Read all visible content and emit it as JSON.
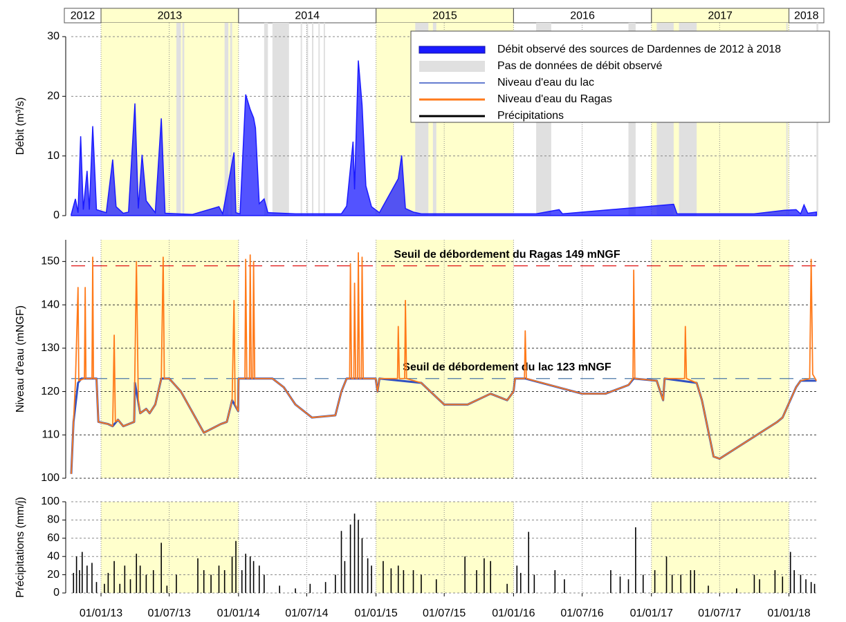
{
  "years": {
    "labels": [
      "2012",
      "2013",
      "2014",
      "2015",
      "2016",
      "2017",
      "2018"
    ],
    "shaded": [
      false,
      true,
      false,
      true,
      false,
      true,
      false
    ],
    "shade_color": "#ffffcc"
  },
  "chart_data": [
    {
      "type": "area",
      "ylabel": "Débit (m³/s)",
      "ylim": [
        0,
        30
      ],
      "yticks": [
        0,
        10,
        20,
        30
      ],
      "grid": true,
      "legend": "upper right",
      "xlim": [
        "14/10/12",
        "20/03/18"
      ],
      "series": [
        {
          "name": "Débit observé des sources de Dardennes de 2012 à 2018",
          "color": "#1a1aff",
          "x": [
            "14/10/12",
            "25/10/12",
            "01/11/12",
            "08/11/12",
            "15/11/12",
            "25/11/12",
            "01/12/12",
            "10/12/12",
            "20/12/12",
            "15/01/13",
            "01/02/13",
            "10/02/13",
            "01/03/13",
            "15/03/13",
            "01/04/13",
            "10/04/13",
            "20/04/13",
            "01/05/13",
            "15/05/13",
            "25/05/13",
            "10/06/13",
            "20/06/13",
            "01/09/13",
            "10/11/13",
            "20/11/13",
            "20/12/13",
            "25/12/13",
            "05/01/14",
            "20/01/14",
            "01/02/14",
            "10/02/14",
            "15/02/14",
            "25/02/14",
            "10/03/14",
            "20/03/14",
            "01/06/14",
            "01/10/14",
            "15/10/14",
            "01/11/14",
            "05/11/14",
            "15/11/14",
            "25/11/14",
            "05/12/14",
            "20/12/14",
            "10/01/15",
            "01/03/15",
            "10/03/15",
            "20/03/15",
            "10/04/15",
            "01/05/15",
            "01/03/16",
            "01/05/16",
            "10/05/16",
            "01/03/17",
            "10/03/17",
            "01/10/17",
            "20/12/17",
            "20/01/18",
            "01/02/18",
            "10/02/18",
            "20/02/18",
            "15/03/18"
          ],
          "values": [
            0.2,
            2.8,
            0.5,
            13.3,
            1.0,
            7.5,
            1.0,
            15,
            1.0,
            0.5,
            9.4,
            1.5,
            0.4,
            0.6,
            18.8,
            1.2,
            10.2,
            2.5,
            1.3,
            0.5,
            16.3,
            0.4,
            0.2,
            1.5,
            0.3,
            10.6,
            0.5,
            0.3,
            20.3,
            17.8,
            16.4,
            14.7,
            2.0,
            2.8,
            0.5,
            0.3,
            0.3,
            1.6,
            12.4,
            4.4,
            26,
            18.5,
            5,
            1.5,
            0.5,
            6.2,
            10.1,
            1.2,
            0.6,
            0.3,
            0.3,
            1.0,
            0.3,
            1.9,
            0.3,
            0.3,
            0.9,
            1.0,
            0.3,
            1.8,
            0.4,
            0.6
          ]
        }
      ],
      "gap_label": "Pas de données de débit observé",
      "gap_color": "#e0e0e0",
      "gaps": [
        [
          "20/07/13",
          "01/08/13"
        ],
        [
          "05/08/13",
          "10/08/13"
        ],
        [
          "25/11/13",
          "05/12/13"
        ],
        [
          "10/12/13",
          "15/12/13"
        ],
        [
          "10/03/14",
          "20/03/14"
        ],
        [
          "01/04/14",
          "15/05/14"
        ],
        [
          "15/06/14",
          "17/06/14"
        ],
        [
          "01/07/14",
          "03/07/14"
        ],
        [
          "15/07/14",
          "17/07/14"
        ],
        [
          "01/08/14",
          "03/08/14"
        ],
        [
          "15/08/14",
          "17/08/14"
        ],
        [
          "15/04/15",
          "20/05/15"
        ],
        [
          "01/06/15",
          "10/06/15"
        ],
        [
          "01/03/16",
          "10/04/16"
        ],
        [
          "01/11/16",
          "20/11/16"
        ],
        [
          "15/01/17",
          "01/03/17"
        ],
        [
          "15/03/17",
          "01/05/17"
        ],
        [
          "25/12/17",
          "28/12/17"
        ],
        [
          "15/03/18",
          "20/03/18"
        ]
      ]
    },
    {
      "type": "line",
      "ylabel": "Niveau d'eau (mNGF)",
      "ylim": [
        100,
        155
      ],
      "yticks": [
        100,
        110,
        120,
        130,
        140,
        150
      ],
      "grid": true,
      "xlim": [
        "14/10/12",
        "20/03/18"
      ],
      "series": [
        {
          "name": "Niveau d'eau du lac",
          "color": "#3050c0",
          "x": [
            "14/10/12",
            "20/10/12",
            "01/11/12",
            "10/11/12",
            "20/12/12",
            "25/12/12",
            "20/01/13",
            "01/02/13",
            "15/02/13",
            "01/03/13",
            "30/03/13",
            "01/04/13",
            "15/04/13",
            "01/05/13",
            "10/05/13",
            "25/05/13",
            "10/06/13",
            "01/07/13",
            "01/08/13",
            "01/10/13",
            "15/11/13",
            "01/12/13",
            "15/12/13",
            "31/12/13",
            "01/01/14",
            "01/04/14",
            "01/05/14",
            "01/06/14",
            "15/07/14",
            "15/09/14",
            "01/10/14",
            "15/10/14",
            "31/12/14",
            "05/01/15",
            "10/01/15",
            "01/05/15",
            "01/07/15",
            "01/09/15",
            "01/11/15",
            "15/12/15",
            "01/01/16",
            "05/01/16",
            "01/02/16",
            "01/07/16",
            "01/09/16",
            "01/11/16",
            "15/11/16",
            "15/01/17",
            "01/02/17",
            "05/02/17",
            "01/05/17",
            "15/05/17",
            "15/06/17",
            "01/07/17",
            "01/12/17",
            "15/12/17",
            "20/01/18",
            "01/02/18",
            "15/03/18"
          ],
          "values": [
            101,
            113,
            122,
            123,
            123,
            113,
            112.5,
            112,
            113.5,
            112,
            113,
            122,
            115,
            116,
            115,
            117,
            123,
            123,
            120,
            110.5,
            112.5,
            113,
            118,
            115.5,
            123,
            123,
            121,
            117,
            114,
            114.5,
            120,
            123,
            123,
            120,
            123,
            122,
            117,
            117,
            119.5,
            118,
            120,
            123,
            123,
            119.5,
            119.5,
            121.5,
            123,
            122.5,
            118,
            123,
            122,
            118,
            105,
            104.5,
            113,
            114,
            121,
            122.5,
            122.5
          ]
        },
        {
          "name": "Niveau d'eau du Ragas",
          "color": "#ff7a1a",
          "x": [
            "14/10/12",
            "20/10/12",
            "25/10/12",
            "01/11/12",
            "03/11/12",
            "18/11/12",
            "20/11/12",
            "22/11/12",
            "08/12/12",
            "10/12/12",
            "12/12/12",
            "20/12/12",
            "25/12/12",
            "20/01/13",
            "01/02/13",
            "05/02/13",
            "08/02/13",
            "15/02/13",
            "01/03/13",
            "30/03/13",
            "05/04/13",
            "10/04/13",
            "15/04/13",
            "01/05/13",
            "10/05/13",
            "25/05/13",
            "10/06/13",
            "15/06/13",
            "18/06/13",
            "01/07/13",
            "01/08/13",
            "01/10/13",
            "15/11/13",
            "01/12/13",
            "15/12/13",
            "20/12/13",
            "23/12/13",
            "31/12/13",
            "01/01/14",
            "18/01/14",
            "20/01/14",
            "23/01/14",
            "30/01/14",
            "01/02/14",
            "04/02/14",
            "08/02/14",
            "10/02/14",
            "13/02/14",
            "01/04/14",
            "01/05/14",
            "01/06/14",
            "15/07/14",
            "15/09/14",
            "01/10/14",
            "15/10/14",
            "23/10/14",
            "25/10/14",
            "28/10/14",
            "03/11/14",
            "05/11/14",
            "08/11/14",
            "13/11/14",
            "15/11/14",
            "18/11/14",
            "23/11/14",
            "25/11/14",
            "28/11/14",
            "31/12/14",
            "05/01/15",
            "10/01/15",
            "27/02/15",
            "01/03/15",
            "04/03/15",
            "18/03/15",
            "20/03/15",
            "23/03/15",
            "01/05/15",
            "01/07/15",
            "01/09/15",
            "01/11/15",
            "15/12/15",
            "01/01/16",
            "05/01/16",
            "30/01/16",
            "01/02/16",
            "04/02/16",
            "01/07/16",
            "01/09/16",
            "01/11/16",
            "13/11/16",
            "15/11/16",
            "18/11/16",
            "15/01/17",
            "01/02/17",
            "05/02/17",
            "30/03/17",
            "01/04/17",
            "04/04/17",
            "01/05/17",
            "15/05/17",
            "15/06/17",
            "01/07/17",
            "01/12/17",
            "15/12/17",
            "20/01/18",
            "01/02/18",
            "25/02/18",
            "01/03/18",
            "05/03/18",
            "15/03/18"
          ],
          "values": [
            101,
            113,
            122,
            144,
            122.5,
            123,
            144,
            123,
            123,
            151,
            123,
            123,
            113,
            112.5,
            112,
            133,
            113,
            113.5,
            112,
            113,
            150,
            118,
            115,
            116,
            115,
            117,
            123,
            151,
            123,
            123,
            120,
            110.5,
            112.5,
            113,
            118,
            141,
            117,
            115.5,
            123,
            123,
            150.5,
            123,
            123,
            151.5,
            123,
            123,
            150,
            123,
            123,
            121,
            117,
            114,
            114.5,
            120,
            123,
            123,
            149.5,
            123,
            123,
            145,
            123,
            123,
            152,
            123,
            123,
            151,
            123,
            123,
            120,
            123,
            123,
            135,
            123,
            123,
            141,
            123,
            122,
            117,
            117,
            119.5,
            118,
            120,
            123,
            123,
            134,
            123,
            119.5,
            119.5,
            121.5,
            123,
            148,
            123,
            122.5,
            118,
            123,
            123,
            135,
            123,
            122,
            118,
            105,
            104.5,
            113,
            114,
            121,
            122.5,
            123,
            150.5,
            124,
            122.5
          ]
        }
      ],
      "thresholds": [
        {
          "label": "Seuil de débordement du Ragas 149 mNGF",
          "value": 149,
          "color": "#e01010"
        },
        {
          "label": "Seuil de débordement du lac 123 mNGF",
          "value": 123,
          "color": "#4a78a8"
        }
      ]
    },
    {
      "type": "bar",
      "ylabel": "Précipitations (mm/j)",
      "ylim": [
        0,
        100
      ],
      "yticks": [
        0,
        20,
        40,
        60,
        80,
        100
      ],
      "grid": true,
      "xlim": [
        "14/10/12",
        "20/03/18"
      ],
      "xticks": [
        "01/01/13",
        "01/07/13",
        "01/01/14",
        "01/07/14",
        "01/01/15",
        "01/07/15",
        "01/01/16",
        "01/07/16",
        "01/01/17",
        "01/07/17",
        "01/01/18"
      ],
      "series": [
        {
          "name": "Précipitations",
          "color": "#000000",
          "x": [
            "20/10/12",
            "28/10/12",
            "05/11/12",
            "12/11/12",
            "25/11/12",
            "08/12/12",
            "20/12/12",
            "10/01/13",
            "20/01/13",
            "05/02/13",
            "20/02/13",
            "05/03/13",
            "20/03/13",
            "05/04/13",
            "15/04/13",
            "01/05/13",
            "20/05/13",
            "10/06/13",
            "25/06/13",
            "20/07/13",
            "15/09/13",
            "01/10/13",
            "20/10/13",
            "10/11/13",
            "25/11/13",
            "15/12/13",
            "25/12/13",
            "10/01/14",
            "20/01/14",
            "01/02/14",
            "10/02/14",
            "25/02/14",
            "10/03/14",
            "20/04/14",
            "01/06/14",
            "10/07/14",
            "20/08/14",
            "15/09/14",
            "01/10/14",
            "10/10/14",
            "25/10/14",
            "05/11/14",
            "15/11/14",
            "25/11/14",
            "10/12/14",
            "20/12/14",
            "20/01/15",
            "10/02/15",
            "01/03/15",
            "15/03/15",
            "10/04/15",
            "01/05/15",
            "10/06/15",
            "25/08/15",
            "25/09/15",
            "15/10/15",
            "01/11/15",
            "15/12/15",
            "10/01/16",
            "20/01/16",
            "10/02/16",
            "25/02/16",
            "20/04/16",
            "15/05/16",
            "15/09/16",
            "10/10/16",
            "01/11/16",
            "20/11/16",
            "10/12/16",
            "10/01/17",
            "10/02/17",
            "25/02/17",
            "20/03/17",
            "15/04/17",
            "25/04/17",
            "01/06/17",
            "15/08/17",
            "01/10/17",
            "15/10/17",
            "25/11/17",
            "15/12/17",
            "05/01/18",
            "15/01/18",
            "01/02/18",
            "15/02/18",
            "01/03/18",
            "10/03/18"
          ],
          "values": [
            22,
            40,
            25,
            45,
            30,
            33,
            12,
            10,
            22,
            35,
            10,
            30,
            15,
            43,
            30,
            20,
            25,
            55,
            8,
            20,
            38,
            25,
            20,
            30,
            25,
            40,
            57,
            25,
            43,
            40,
            35,
            30,
            20,
            8,
            5,
            10,
            12,
            20,
            68,
            35,
            75,
            87,
            80,
            60,
            38,
            30,
            35,
            27,
            30,
            25,
            25,
            20,
            15,
            40,
            25,
            38,
            35,
            10,
            30,
            22,
            67,
            20,
            25,
            15,
            25,
            18,
            15,
            72,
            20,
            25,
            40,
            20,
            20,
            25,
            25,
            8,
            5,
            20,
            15,
            25,
            18,
            45,
            25,
            20,
            15,
            12,
            10
          ]
        }
      ]
    }
  ]
}
